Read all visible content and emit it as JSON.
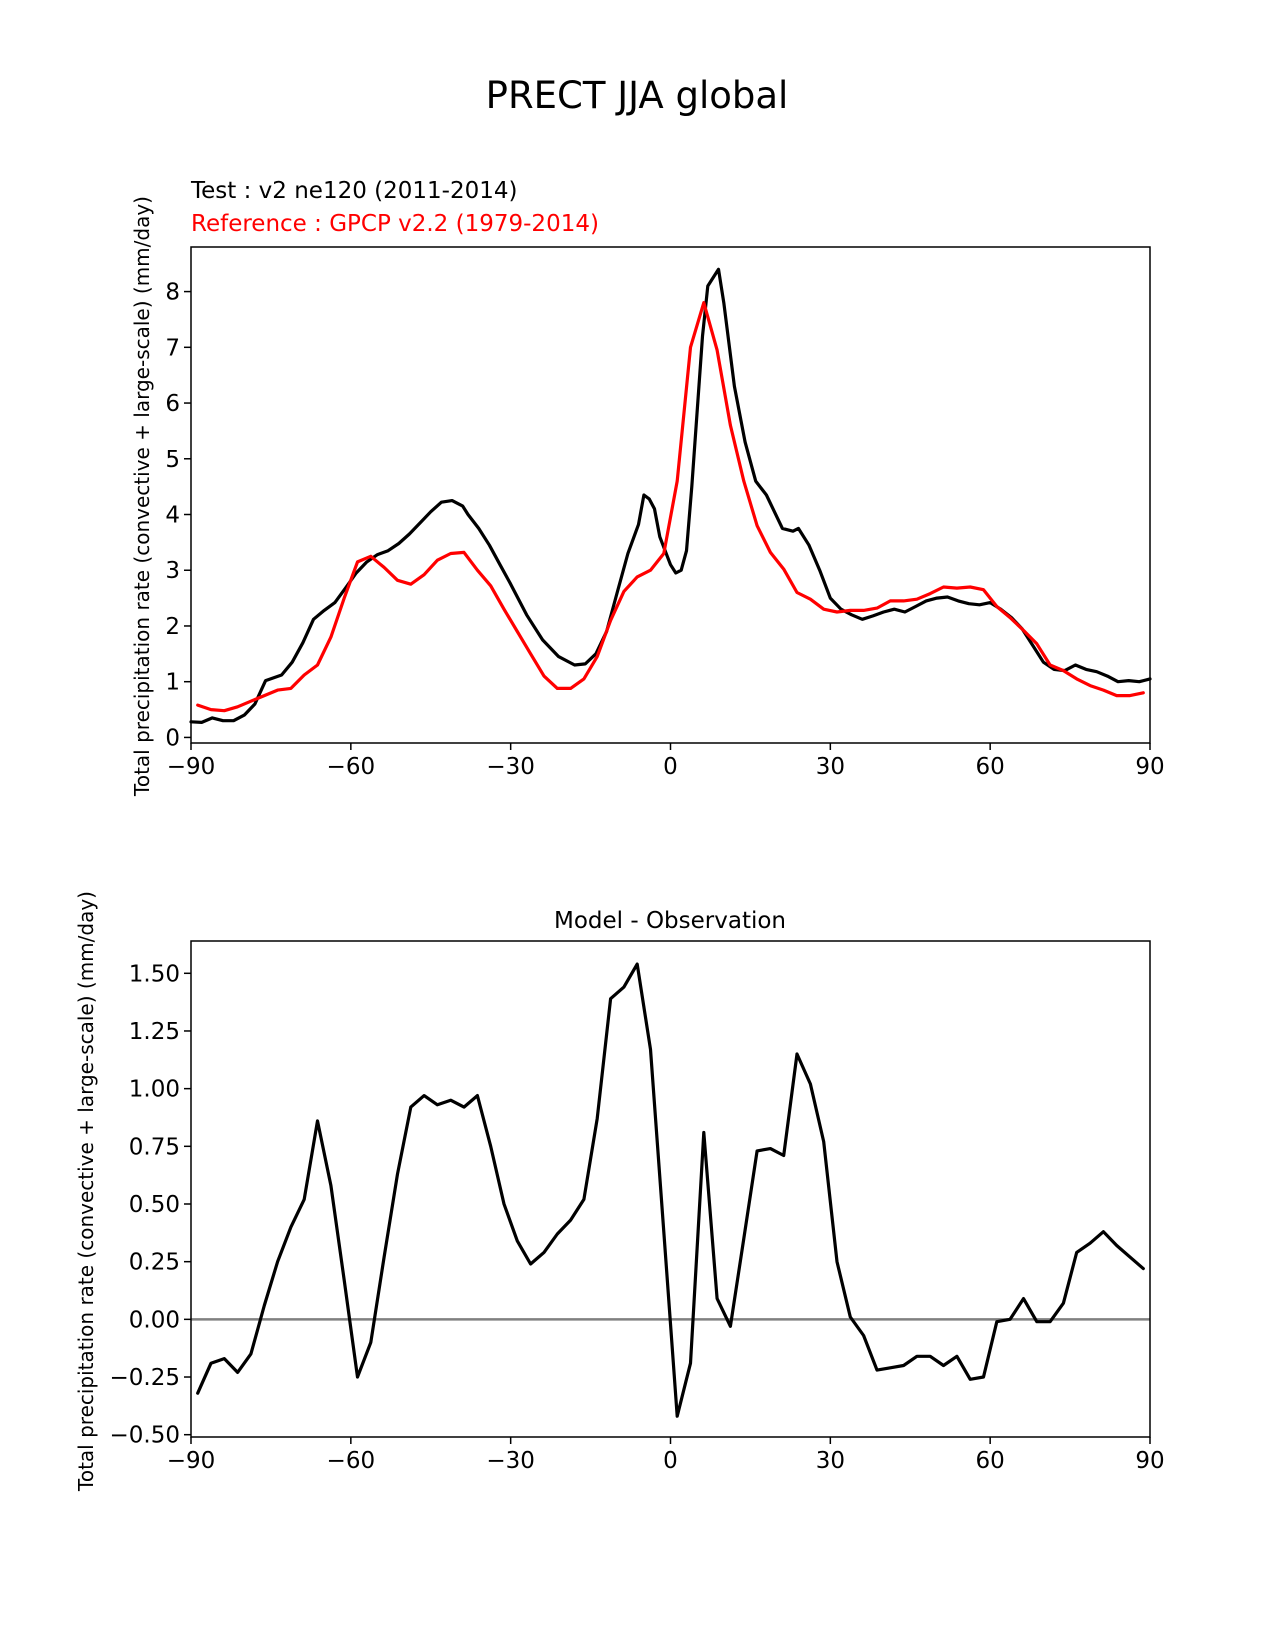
{
  "suptitle": "PRECT JJA global",
  "chart_data": [
    {
      "type": "line",
      "test_label": "Test : v2 ne120 (2011-2014)",
      "reference_label": "Reference : GPCP v2.2 (1979-2014)",
      "ylabel": "Total precipitation rate (convective + large-scale) (mm/day)",
      "xlim": [
        -90,
        90
      ],
      "ylim": [
        -0.1,
        8.8
      ],
      "xticks": [
        -90,
        -60,
        -30,
        0,
        30,
        60,
        90
      ],
      "xtick_labels": [
        "−90",
        "−60",
        "−30",
        "0",
        "30",
        "60",
        "90"
      ],
      "yticks": [
        0,
        1,
        2,
        3,
        4,
        5,
        6,
        7,
        8
      ],
      "ytick_labels": [
        "0",
        "1",
        "2",
        "3",
        "4",
        "5",
        "6",
        "7",
        "8"
      ],
      "series": [
        {
          "role": "test",
          "color": "#000000",
          "x": [
            -90,
            -88,
            -86,
            -84,
            -82,
            -80,
            -78,
            -76,
            -73,
            -71,
            -69,
            -67,
            -65,
            -63,
            -61,
            -59,
            -57,
            -55,
            -53,
            -51,
            -49,
            -47,
            -45,
            -43,
            -41,
            -39,
            -38,
            -36,
            -34,
            -32,
            -30,
            -27,
            -24,
            -21,
            -18,
            -16,
            -14,
            -12,
            -10,
            -8,
            -6,
            -5,
            -4,
            -3,
            -2,
            0,
            1,
            2,
            3,
            4,
            6,
            7,
            9,
            10,
            12,
            14,
            16,
            18,
            21,
            23,
            24,
            26,
            28,
            30,
            32,
            34,
            36,
            38,
            40,
            42,
            44,
            46,
            48,
            50,
            52,
            54,
            56,
            58,
            60,
            62,
            64,
            66,
            68,
            70,
            72,
            74,
            76,
            78,
            80,
            82,
            84,
            86,
            88,
            90
          ],
          "y": [
            0.28,
            0.27,
            0.35,
            0.3,
            0.3,
            0.4,
            0.6,
            1.02,
            1.12,
            1.35,
            1.7,
            2.12,
            2.28,
            2.42,
            2.68,
            2.95,
            3.15,
            3.28,
            3.35,
            3.48,
            3.65,
            3.85,
            4.05,
            4.22,
            4.25,
            4.15,
            4.0,
            3.75,
            3.45,
            3.1,
            2.75,
            2.2,
            1.75,
            1.45,
            1.3,
            1.32,
            1.5,
            1.9,
            2.6,
            3.3,
            3.82,
            4.35,
            4.28,
            4.1,
            3.6,
            3.1,
            2.95,
            3.0,
            3.35,
            4.5,
            7.2,
            8.1,
            8.4,
            7.8,
            6.3,
            5.3,
            4.6,
            4.35,
            3.75,
            3.7,
            3.75,
            3.45,
            3.0,
            2.5,
            2.3,
            2.2,
            2.12,
            2.18,
            2.25,
            2.3,
            2.25,
            2.35,
            2.45,
            2.5,
            2.52,
            2.45,
            2.4,
            2.38,
            2.42,
            2.3,
            2.15,
            1.95,
            1.65,
            1.35,
            1.22,
            1.2,
            1.3,
            1.22,
            1.18,
            1.1,
            1.0,
            1.02,
            1.0,
            1.05
          ]
        },
        {
          "role": "reference",
          "color": "#ff0000",
          "x": [
            -88.75,
            -86.25,
            -83.75,
            -81.25,
            -78.75,
            -76.25,
            -73.75,
            -71.25,
            -68.75,
            -66.25,
            -63.75,
            -61.25,
            -58.75,
            -56.25,
            -53.75,
            -51.25,
            -48.75,
            -46.25,
            -43.75,
            -41.25,
            -38.75,
            -36.25,
            -33.75,
            -31.25,
            -28.75,
            -26.25,
            -23.75,
            -21.25,
            -18.75,
            -16.25,
            -13.75,
            -11.25,
            -8.75,
            -6.25,
            -3.75,
            -1.25,
            1.25,
            3.75,
            6.25,
            8.75,
            11.25,
            13.75,
            16.25,
            18.75,
            21.25,
            23.75,
            26.25,
            28.75,
            31.25,
            33.75,
            36.25,
            38.75,
            41.25,
            43.75,
            46.25,
            48.75,
            51.25,
            53.75,
            56.25,
            58.75,
            61.25,
            63.75,
            66.25,
            68.75,
            71.25,
            73.75,
            76.25,
            78.75,
            81.25,
            83.75,
            86.25,
            88.75
          ],
          "y": [
            0.58,
            0.5,
            0.48,
            0.55,
            0.65,
            0.75,
            0.85,
            0.88,
            1.12,
            1.3,
            1.8,
            2.5,
            3.15,
            3.25,
            3.05,
            2.82,
            2.75,
            2.92,
            3.18,
            3.3,
            3.32,
            3.0,
            2.72,
            2.3,
            1.9,
            1.5,
            1.1,
            0.88,
            0.88,
            1.05,
            1.45,
            2.1,
            2.62,
            2.88,
            3.0,
            3.3,
            4.6,
            7.0,
            7.8,
            6.95,
            5.6,
            4.6,
            3.8,
            3.32,
            3.02,
            2.6,
            2.48,
            2.3,
            2.25,
            2.28,
            2.28,
            2.32,
            2.45,
            2.45,
            2.48,
            2.58,
            2.7,
            2.68,
            2.7,
            2.65,
            2.35,
            2.15,
            1.92,
            1.68,
            1.3,
            1.2,
            1.05,
            0.93,
            0.85,
            0.75,
            0.75,
            0.8
          ]
        }
      ]
    },
    {
      "type": "line",
      "title": "Model - Observation",
      "ylabel": "Total precipitation rate (convective + large-scale) (mm/day)",
      "xlim": [
        -90,
        90
      ],
      "ylim": [
        -0.51,
        1.64
      ],
      "xticks": [
        -90,
        -60,
        -30,
        0,
        30,
        60,
        90
      ],
      "xtick_labels": [
        "−90",
        "−60",
        "−30",
        "0",
        "30",
        "60",
        "90"
      ],
      "yticks": [
        -0.5,
        -0.25,
        0,
        0.25,
        0.5,
        0.75,
        1.0,
        1.25,
        1.5
      ],
      "ytick_labels": [
        "−0.50",
        "−0.25",
        "0.00",
        "0.25",
        "0.50",
        "0.75",
        "1.00",
        "1.25",
        "1.50"
      ],
      "zero_line": {
        "y": 0,
        "color": "#808080"
      },
      "series": [
        {
          "color": "#000000",
          "x": [
            -88.75,
            -86.25,
            -83.75,
            -81.25,
            -78.75,
            -76.25,
            -73.75,
            -71.25,
            -68.75,
            -66.25,
            -63.75,
            -61.25,
            -58.75,
            -56.25,
            -53.75,
            -51.25,
            -48.75,
            -46.25,
            -43.75,
            -41.25,
            -38.75,
            -36.25,
            -33.75,
            -31.25,
            -28.75,
            -26.25,
            -23.75,
            -21.25,
            -18.75,
            -16.25,
            -13.75,
            -11.25,
            -8.75,
            -6.25,
            -3.75,
            -1.25,
            1.25,
            3.75,
            6.25,
            8.75,
            11.25,
            13.75,
            16.25,
            18.75,
            21.25,
            23.75,
            26.25,
            28.75,
            31.25,
            33.75,
            36.25,
            38.75,
            41.25,
            43.75,
            46.25,
            48.75,
            51.25,
            53.75,
            56.25,
            58.75,
            61.25,
            63.75,
            66.25,
            68.75,
            71.25,
            73.75,
            76.25,
            78.75,
            81.25,
            83.75,
            86.25,
            88.75
          ],
          "y": [
            -0.32,
            -0.19,
            -0.17,
            -0.23,
            -0.15,
            0.06,
            0.25,
            0.4,
            0.52,
            0.86,
            0.58,
            0.17,
            -0.25,
            -0.1,
            0.27,
            0.63,
            0.92,
            0.97,
            0.93,
            0.95,
            0.92,
            0.97,
            0.75,
            0.5,
            0.34,
            0.24,
            0.29,
            0.37,
            0.43,
            0.52,
            0.87,
            1.39,
            1.44,
            1.54,
            1.17,
            0.38,
            -0.42,
            -0.19,
            0.81,
            0.09,
            -0.03,
            0.35,
            0.73,
            0.74,
            0.71,
            1.15,
            1.02,
            0.77,
            0.25,
            0.01,
            -0.07,
            -0.22,
            -0.21,
            -0.2,
            -0.16,
            -0.16,
            -0.2,
            -0.16,
            -0.26,
            -0.25,
            -0.01,
            0.0,
            0.09,
            -0.01,
            -0.01,
            0.07,
            0.29,
            0.33,
            0.38,
            0.32,
            0.27,
            0.22
          ]
        }
      ]
    }
  ]
}
